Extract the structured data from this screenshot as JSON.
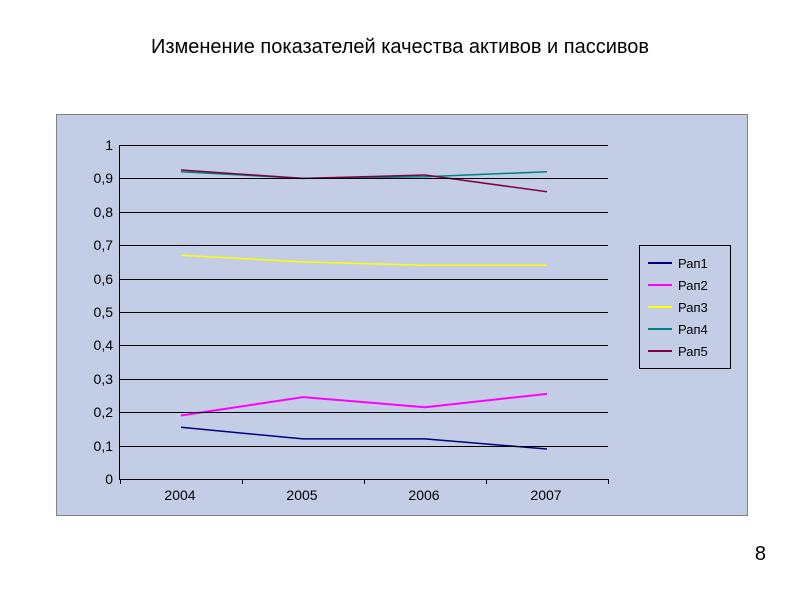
{
  "title": "Изменение показателей качества активов и пассивов",
  "page_number": "8",
  "chart": {
    "type": "line",
    "background_color": "#c3cde6",
    "border_color": "#808080",
    "plot_border_color": "#000000",
    "grid_color": "#000000",
    "font_family": "Arial",
    "ylabel_fontsize": 14,
    "xlabel_fontsize": 14,
    "ylim": [
      0,
      1
    ],
    "ytick_step": 0.1,
    "yticks": [
      "0",
      "0,1",
      "0,2",
      "0,3",
      "0,4",
      "0,5",
      "0,6",
      "0,7",
      "0,8",
      "0,9",
      "1"
    ],
    "categories": [
      "2004",
      "2005",
      "2006",
      "2007"
    ],
    "series": [
      {
        "name": "Рап1",
        "color": "#00007f",
        "width": 1.5,
        "values": [
          0.155,
          0.12,
          0.12,
          0.09
        ]
      },
      {
        "name": "Рап2",
        "color": "#ff00ff",
        "width": 2,
        "values": [
          0.19,
          0.245,
          0.215,
          0.255
        ]
      },
      {
        "name": "Рап3",
        "color": "#ffff00",
        "width": 1.5,
        "values": [
          0.67,
          0.65,
          0.64,
          0.64
        ]
      },
      {
        "name": "Рап4",
        "color": "#008080",
        "width": 1.5,
        "values": [
          0.92,
          0.9,
          0.905,
          0.92
        ]
      },
      {
        "name": "Рап5",
        "color": "#800040",
        "width": 1.5,
        "values": [
          0.925,
          0.9,
          0.91,
          0.86
        ]
      }
    ],
    "legend": {
      "border_color": "#000000",
      "background_color": "#c3cde6",
      "fontsize": 13,
      "position": "right"
    }
  }
}
